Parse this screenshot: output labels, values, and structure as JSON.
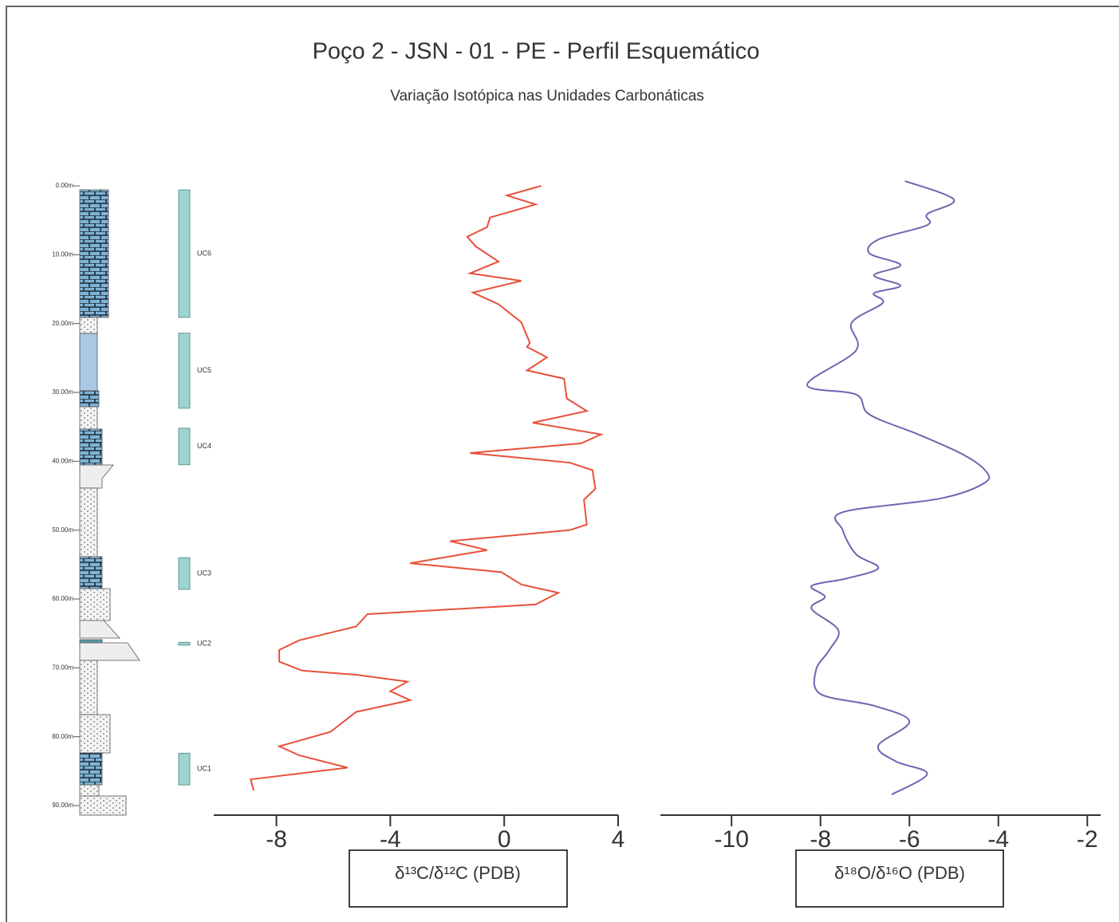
{
  "header": {
    "title": "Poço 2 - JSN - 01 - PE - Perfil Esquemático",
    "subtitle": "Variação Isotópica nas Unidades Carbonáticas"
  },
  "depth_axis": {
    "ylim": [
      0,
      90
    ],
    "yticks": [
      {
        "value": 0,
        "label": "0.00m"
      },
      {
        "value": 10,
        "label": "10.00m"
      },
      {
        "value": 20,
        "label": "20.00m"
      },
      {
        "value": 30,
        "label": "30.00m"
      },
      {
        "value": 40,
        "label": "40.00m"
      },
      {
        "value": 50,
        "label": "50.00m"
      },
      {
        "value": 60,
        "label": "60.00m"
      },
      {
        "value": 70,
        "label": "70.00m"
      },
      {
        "value": 80,
        "label": "80.00m"
      },
      {
        "value": 90,
        "label": "90.00m"
      }
    ]
  },
  "units": [
    {
      "label": "UC6",
      "top": 0.6,
      "base": 19.1
    },
    {
      "label": "UC5",
      "top": 21.4,
      "base": 32.3
    },
    {
      "label": "UC4",
      "top": 35.2,
      "base": 40.5
    },
    {
      "label": "UC3",
      "top": 54.0,
      "base": 58.6
    },
    {
      "label": "UC2",
      "top": 66.3,
      "base": 66.7
    },
    {
      "label": "UC1",
      "top": 82.4,
      "base": 87.0
    }
  ],
  "chart_data": [
    {
      "type": "line",
      "xlabel": "δ¹³C/δ¹²C (PDB)",
      "color": "#e8503a",
      "smooth": false,
      "xlim": [
        -10.2,
        4
      ],
      "xticks": [
        -8,
        -4,
        0,
        4
      ],
      "depth": [
        0,
        1.4,
        2.7,
        4.6,
        6.0,
        7.4,
        8.8,
        11.0,
        12.7,
        13.8,
        15.5,
        17.2,
        19.8,
        22.8,
        23.4,
        24.9,
        26.8,
        28.0,
        30.9,
        32.7,
        34.4,
        36.1,
        37.4,
        38.8,
        40.2,
        41.3,
        44.0,
        45.6,
        49.2,
        50.0,
        51.6,
        52.9,
        54.8,
        56.1,
        57.9,
        59.1,
        60.8,
        62.2,
        64.0,
        66.0,
        67.4,
        69.1,
        70.4,
        71.0,
        72.0,
        73.4,
        74.7,
        76.4,
        79.3,
        81.4,
        82.7,
        84.5,
        86.2,
        87.8
      ],
      "values": [
        1.3,
        0.1,
        1.1,
        -0.5,
        -0.6,
        -1.3,
        -1.0,
        -0.2,
        -1.2,
        0.6,
        -1.1,
        -0.2,
        0.6,
        0.9,
        0.8,
        1.5,
        0.8,
        2.1,
        2.2,
        2.9,
        1.0,
        3.4,
        2.7,
        -1.2,
        2.3,
        3.1,
        3.2,
        2.8,
        2.9,
        2.3,
        -1.9,
        -0.6,
        -3.3,
        -0.1,
        0.6,
        1.9,
        1.1,
        -4.8,
        -5.2,
        -7.2,
        -7.9,
        -7.9,
        -7.1,
        -5.2,
        -3.4,
        -4.0,
        -3.3,
        -5.2,
        -6.1,
        -7.9,
        -7.2,
        -5.5,
        -8.9,
        -8.8
      ]
    },
    {
      "type": "line",
      "xlabel": "δ¹⁸O/δ¹⁶O (PDB)",
      "color": "#6b67b0",
      "smooth": true,
      "xlim": [
        -11.6,
        -1.7
      ],
      "xticks": [
        -10,
        -8,
        -6,
        -4,
        -2
      ],
      "depth": [
        -0.7,
        2.0,
        4.1,
        5.7,
        7.8,
        9.8,
        11.5,
        13.0,
        14.5,
        15.6,
        17.0,
        19.9,
        23.9,
        28.9,
        30.3,
        33.2,
        36.1,
        39.0,
        41.3,
        43.1,
        45.4,
        47.4,
        50.0,
        53.5,
        55.5,
        57.0,
        58.1,
        59.7,
        61.4,
        64.5,
        67.4,
        70.3,
        73.8,
        75.5,
        77.8,
        81.3,
        83.6,
        85.4,
        88.4
      ],
      "values": [
        -6.1,
        -5.0,
        -5.6,
        -5.6,
        -6.7,
        -6.9,
        -6.2,
        -6.8,
        -6.2,
        -6.8,
        -6.6,
        -7.3,
        -7.2,
        -8.3,
        -7.2,
        -6.9,
        -5.8,
        -4.8,
        -4.3,
        -4.3,
        -5.3,
        -7.5,
        -7.5,
        -7.2,
        -6.7,
        -7.4,
        -8.2,
        -7.9,
        -8.2,
        -7.6,
        -7.8,
        -8.1,
        -8.0,
        -6.8,
        -6.0,
        -6.7,
        -6.3,
        -5.6,
        -6.4
      ]
    }
  ]
}
